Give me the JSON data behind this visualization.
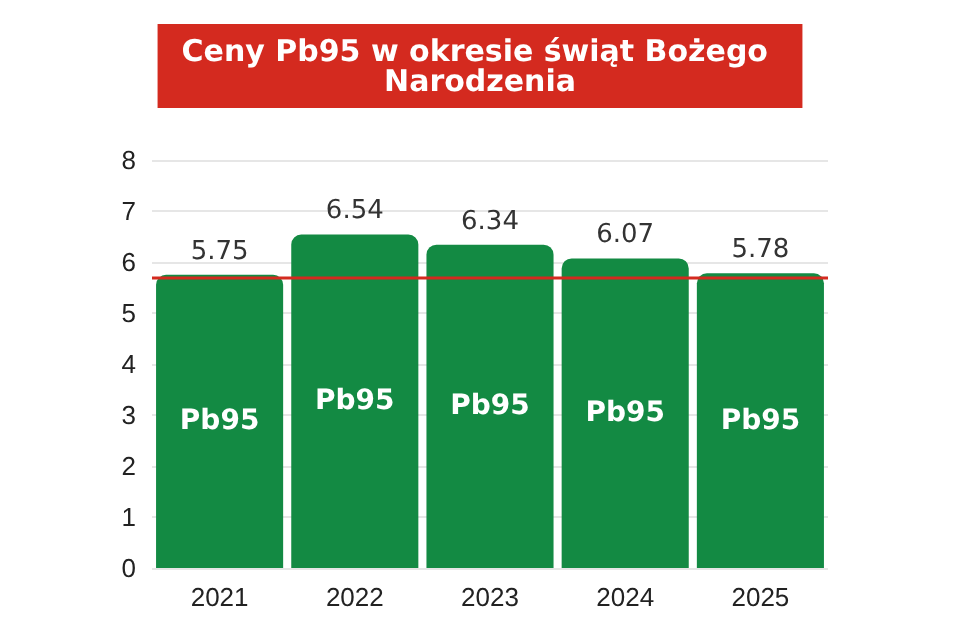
{
  "chart_data": {
    "type": "bar",
    "title": "Ceny Pb95 w okresie świąt Bożego Narodzenia",
    "categories": [
      "2021",
      "2022",
      "2023",
      "2024",
      "2025"
    ],
    "series": [
      {
        "name": "Pb95",
        "color": "#138a43",
        "values": [
          5.75,
          6.54,
          6.34,
          6.07,
          5.78
        ]
      }
    ],
    "data_labels": true,
    "ylim": [
      0,
      8
    ],
    "yticks": [
      0,
      1,
      2,
      3,
      4,
      5,
      6,
      7,
      8
    ],
    "grid": "y",
    "ref_lines": [
      {
        "axis": "y",
        "value": 5.7,
        "color": "#d42a1f"
      }
    ]
  }
}
